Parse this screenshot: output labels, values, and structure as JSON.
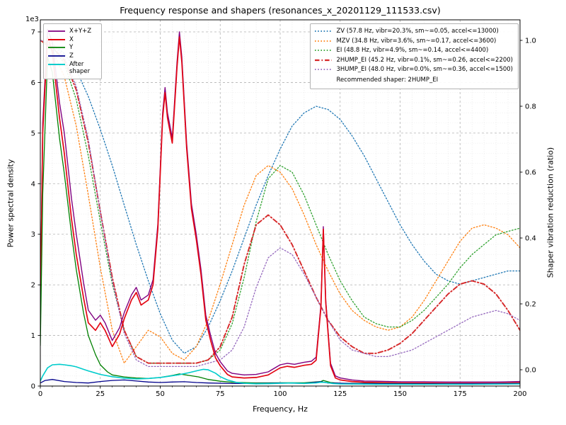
{
  "chart_data": {
    "type": "line",
    "title": "Frequency response and shapers (resonances_x_20201129_111533.csv)",
    "xlabel": "Frequency, Hz",
    "ylabel_left": "Power spectral density",
    "ylabel_right": "Shaper vibration reduction (ratio)",
    "offset_text": "1e3",
    "xlim": [
      0,
      200
    ],
    "ylim_left": [
      0,
      7000
    ],
    "ylim_right": [
      0,
      1
    ],
    "x_ticks": [
      0,
      25,
      50,
      75,
      100,
      125,
      150,
      175,
      200
    ],
    "y_left_ticks": [
      0,
      1,
      2,
      3,
      4,
      5,
      6,
      7
    ],
    "y_right_ticks": [
      0.0,
      0.2,
      0.4,
      0.6,
      0.8,
      1.0
    ],
    "grid": true,
    "legend_position_psd": "upper-left",
    "legend_position_shaper": "upper-right",
    "recommendation": "Recommended shaper: 2HUMP_EI",
    "psd_series": [
      {
        "name": "X+Y+Z",
        "color": "#800080",
        "style": "solid",
        "width": 1.4,
        "axis": "left",
        "x": [
          0,
          1,
          3,
          5,
          8,
          10,
          13,
          15,
          18,
          20,
          23,
          25,
          27,
          30,
          33,
          35,
          38,
          40,
          42,
          45,
          47,
          49,
          51,
          52,
          53,
          55,
          57,
          58,
          59,
          61,
          63,
          65,
          67,
          69,
          71,
          73,
          75,
          78,
          80,
          85,
          90,
          95,
          100,
          103,
          106,
          110,
          113,
          115,
          117,
          118,
          119,
          121,
          123,
          125,
          130,
          135,
          140,
          150,
          160,
          170,
          180,
          190,
          200
        ],
        "y": [
          1500,
          5200,
          7050,
          6800,
          5600,
          5000,
          3700,
          3000,
          2050,
          1500,
          1300,
          1400,
          1250,
          900,
          1150,
          1450,
          1800,
          1950,
          1700,
          1800,
          2100,
          3200,
          5400,
          5900,
          5400,
          4900,
          6400,
          7000,
          6500,
          4800,
          3600,
          3000,
          2300,
          1400,
          1000,
          650,
          480,
          300,
          250,
          220,
          230,
          280,
          420,
          450,
          430,
          470,
          490,
          570,
          1600,
          3150,
          1700,
          450,
          200,
          160,
          120,
          100,
          95,
          85,
          85,
          80,
          80,
          80,
          90
        ]
      },
      {
        "name": "X",
        "color": "#e30613",
        "style": "solid",
        "width": 1.7,
        "axis": "left",
        "x": [
          0,
          1,
          3,
          5,
          8,
          10,
          13,
          15,
          18,
          20,
          23,
          25,
          27,
          30,
          33,
          35,
          38,
          40,
          42,
          45,
          47,
          49,
          51,
          52,
          53,
          55,
          57,
          58,
          59,
          61,
          63,
          65,
          67,
          69,
          71,
          73,
          75,
          78,
          80,
          85,
          90,
          95,
          100,
          103,
          106,
          110,
          113,
          115,
          117,
          118,
          119,
          121,
          123,
          125,
          130,
          135,
          140,
          150,
          160,
          170,
          180,
          190,
          200
        ],
        "y": [
          1300,
          5000,
          6900,
          6600,
          5300,
          4600,
          3300,
          2600,
          1750,
          1250,
          1100,
          1250,
          1100,
          780,
          1020,
          1330,
          1700,
          1850,
          1600,
          1700,
          2000,
          3100,
          5300,
          5800,
          5300,
          4800,
          6300,
          6900,
          6400,
          4700,
          3500,
          2900,
          2200,
          1300,
          900,
          560,
          400,
          230,
          180,
          160,
          170,
          220,
          360,
          390,
          370,
          410,
          430,
          510,
          1550,
          3100,
          1650,
          400,
          160,
          120,
          90,
          75,
          70,
          60,
          60,
          55,
          55,
          55,
          65
        ]
      },
      {
        "name": "Y",
        "color": "#008000",
        "style": "solid",
        "width": 1.3,
        "axis": "left",
        "x": [
          0,
          1,
          3,
          5,
          8,
          10,
          13,
          15,
          18,
          20,
          23,
          25,
          28,
          30,
          35,
          40,
          45,
          50,
          55,
          58,
          62,
          66,
          70,
          75,
          80,
          90,
          100,
          110,
          117,
          118,
          121,
          125,
          140,
          160,
          180,
          200
        ],
        "y": [
          800,
          3800,
          6500,
          6200,
          4900,
          4200,
          3000,
          2300,
          1450,
          1000,
          620,
          420,
          280,
          220,
          180,
          160,
          150,
          170,
          210,
          240,
          210,
          180,
          130,
          95,
          75,
          60,
          65,
          65,
          90,
          110,
          70,
          55,
          50,
          45,
          45,
          50
        ]
      },
      {
        "name": "Z",
        "color": "#00008b",
        "style": "solid",
        "width": 1.3,
        "axis": "left",
        "x": [
          0,
          2,
          5,
          10,
          15,
          20,
          25,
          30,
          35,
          40,
          45,
          50,
          55,
          60,
          65,
          70,
          80,
          90,
          100,
          110,
          117,
          120,
          130,
          150,
          170,
          200
        ],
        "y": [
          60,
          110,
          130,
          90,
          70,
          60,
          90,
          110,
          120,
          100,
          80,
          70,
          80,
          85,
          70,
          60,
          50,
          50,
          60,
          55,
          85,
          60,
          50,
          45,
          45,
          50
        ]
      },
      {
        "name": "After shaper",
        "color": "#00cccc",
        "style": "solid",
        "width": 1.6,
        "axis": "left",
        "x": [
          0,
          1,
          3,
          5,
          8,
          10,
          13,
          15,
          18,
          20,
          25,
          30,
          35,
          40,
          45,
          50,
          55,
          58,
          62,
          65,
          68,
          70,
          73,
          75,
          78,
          82,
          85,
          90,
          95,
          100,
          105,
          110,
          115,
          117,
          119,
          122,
          125,
          140,
          160,
          180,
          200
        ],
        "y": [
          100,
          200,
          360,
          420,
          430,
          420,
          400,
          380,
          330,
          300,
          230,
          185,
          155,
          140,
          150,
          170,
          205,
          225,
          265,
          300,
          330,
          320,
          255,
          185,
          120,
          70,
          55,
          45,
          48,
          55,
          60,
          52,
          62,
          75,
          70,
          50,
          42,
          36,
          35,
          35,
          42
        ]
      }
    ],
    "shaper_x": [
      0,
      5,
      10,
      15,
      20,
      25,
      30,
      35,
      40,
      45,
      50,
      55,
      60,
      65,
      70,
      75,
      80,
      85,
      90,
      95,
      100,
      105,
      110,
      115,
      120,
      125,
      130,
      135,
      140,
      145,
      150,
      155,
      160,
      165,
      170,
      175,
      180,
      185,
      190,
      195,
      200
    ],
    "shaper_series": [
      {
        "name": "ZV",
        "label": "ZV (57.8 Hz, vibr=20.3%, sm~=0.05, accel<=13000)",
        "color": "#1f77b4",
        "style": "dotted",
        "width": 1.3,
        "axis": "right",
        "y": [
          1.0,
          0.99,
          0.96,
          0.91,
          0.83,
          0.73,
          0.62,
          0.5,
          0.38,
          0.27,
          0.17,
          0.09,
          0.05,
          0.07,
          0.13,
          0.21,
          0.3,
          0.4,
          0.5,
          0.59,
          0.67,
          0.74,
          0.78,
          0.8,
          0.79,
          0.76,
          0.71,
          0.65,
          0.58,
          0.51,
          0.44,
          0.38,
          0.33,
          0.29,
          0.27,
          0.26,
          0.27,
          0.28,
          0.29,
          0.3,
          0.3
        ]
      },
      {
        "name": "MZV",
        "label": "MZV (34.8 Hz, vibr=3.6%, sm~=0.17, accel<=3600)",
        "color": "#ff7f0e",
        "style": "dotted",
        "width": 1.3,
        "axis": "right",
        "y": [
          1.0,
          0.97,
          0.89,
          0.74,
          0.53,
          0.31,
          0.12,
          0.02,
          0.07,
          0.12,
          0.1,
          0.05,
          0.03,
          0.07,
          0.15,
          0.26,
          0.38,
          0.5,
          0.59,
          0.62,
          0.6,
          0.55,
          0.47,
          0.38,
          0.3,
          0.23,
          0.18,
          0.15,
          0.13,
          0.12,
          0.13,
          0.16,
          0.21,
          0.27,
          0.33,
          0.39,
          0.43,
          0.44,
          0.43,
          0.41,
          0.37
        ]
      },
      {
        "name": "EI",
        "label": "EI (48.8 Hz, vibr=4.9%, sm~=0.14, accel<=4400)",
        "color": "#2ca02c",
        "style": "dotted",
        "width": 1.3,
        "axis": "right",
        "y": [
          1.0,
          0.98,
          0.93,
          0.82,
          0.65,
          0.45,
          0.26,
          0.12,
          0.04,
          0.02,
          0.02,
          0.02,
          0.02,
          0.02,
          0.03,
          0.06,
          0.14,
          0.28,
          0.45,
          0.58,
          0.62,
          0.6,
          0.53,
          0.44,
          0.35,
          0.27,
          0.21,
          0.16,
          0.14,
          0.13,
          0.13,
          0.15,
          0.18,
          0.22,
          0.26,
          0.31,
          0.35,
          0.38,
          0.41,
          0.42,
          0.43
        ]
      },
      {
        "name": "2HUMP_EI",
        "label": "2HUMP_EI (45.2 Hz, vibr=0.1%, sm~=0.26, accel<=2200)",
        "color": "#d62728",
        "style": "dashdot",
        "width": 1.9,
        "axis": "right",
        "y": [
          1.0,
          0.98,
          0.94,
          0.85,
          0.69,
          0.48,
          0.28,
          0.12,
          0.04,
          0.02,
          0.02,
          0.02,
          0.02,
          0.02,
          0.03,
          0.07,
          0.16,
          0.32,
          0.44,
          0.47,
          0.44,
          0.38,
          0.3,
          0.22,
          0.15,
          0.1,
          0.07,
          0.05,
          0.05,
          0.06,
          0.08,
          0.11,
          0.15,
          0.19,
          0.23,
          0.26,
          0.27,
          0.26,
          0.23,
          0.18,
          0.12
        ]
      },
      {
        "name": "3HUMP_EI",
        "label": "3HUMP_EI (48.0 Hz, vibr=0.0%, sm~=0.36, accel<=1500)",
        "color": "#9467bd",
        "style": "dotted",
        "width": 1.3,
        "axis": "right",
        "y": [
          1.0,
          0.99,
          0.95,
          0.86,
          0.7,
          0.48,
          0.27,
          0.11,
          0.03,
          0.01,
          0.01,
          0.01,
          0.01,
          0.01,
          0.02,
          0.03,
          0.06,
          0.13,
          0.25,
          0.34,
          0.37,
          0.35,
          0.29,
          0.22,
          0.15,
          0.09,
          0.06,
          0.05,
          0.04,
          0.04,
          0.05,
          0.06,
          0.08,
          0.1,
          0.12,
          0.14,
          0.16,
          0.17,
          0.18,
          0.17,
          0.15
        ]
      }
    ]
  }
}
